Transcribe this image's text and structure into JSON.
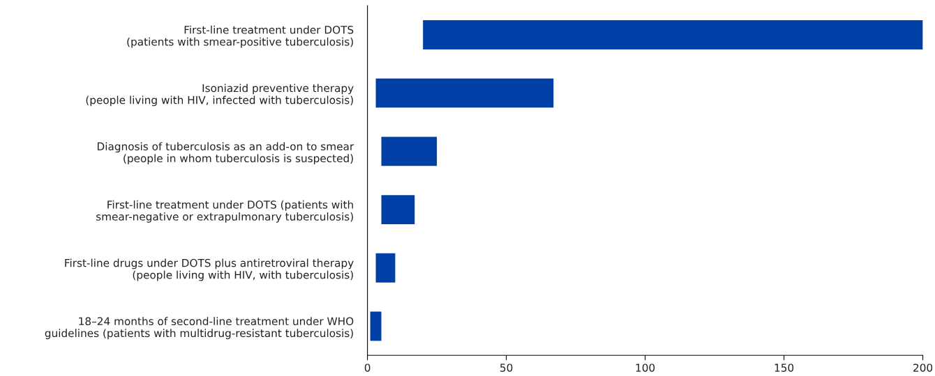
{
  "chart_data": {
    "type": "bar",
    "orientation": "horizontal",
    "categories": [
      "First-line treatment under DOTS\n(patients with smear-positive tuberculosis)",
      "Isoniazid preventive therapy\n(people living with HIV, infected with tuberculosis)",
      "Diagnosis of tuberculosis as an add-on to smear\n(people in whom tuberculosis is suspected)",
      "First-line treatment under DOTS (patients with\nsmear-negative or extrapulmonary tuberculosis)",
      "First-line drugs under DOTS plus antiretroviral therapy\n(people living with HIV, with tuberculosis)",
      "18–24 months of second-line treatment under WHO\nguidelines (patients with multidrug-resistant tuberculosis)"
    ],
    "base": [
      20,
      3,
      5,
      5,
      3,
      1
    ],
    "values": [
      180,
      64,
      20,
      12,
      7,
      4
    ],
    "color": "#003fa5",
    "xlim": [
      0,
      200
    ],
    "xticks": [
      0,
      50,
      100,
      150,
      200
    ],
    "grid": false,
    "legend": false
  }
}
